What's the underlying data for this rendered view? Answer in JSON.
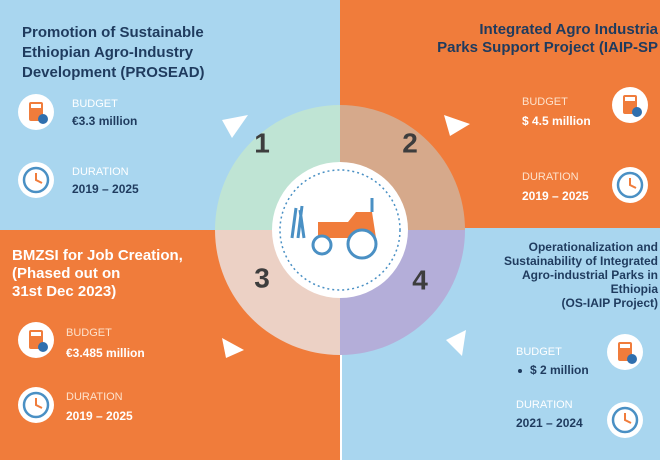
{
  "quadrants": [
    {
      "number": "1",
      "title": [
        "Promotion of Sustainable",
        "Ethiopian Agro-Industry",
        "Development (PROSEAD)"
      ],
      "budget_label": "BUDGET",
      "budget": "€3.3 million",
      "duration_label": "DURATION",
      "duration": "2019 – 2025"
    },
    {
      "number": "2",
      "title": [
        "Integrated Agro Industria",
        "Parks Support Project (IAIP-SP"
      ],
      "budget_label": "BUDGET",
      "budget": "$ 4.5 million",
      "duration_label": "DURATION",
      "duration": "2019 – 2025"
    },
    {
      "number": "3",
      "title": [
        "BMZSI for Job Creation,",
        "(Phased out on",
        " 31st Dec 2023)"
      ],
      "budget_label": "BUDGET",
      "budget": "€3.485 million",
      "duration_label": "DURATION",
      "duration": "2019 – 2025"
    },
    {
      "number": "4",
      "title": [
        "Operationalization and",
        "Sustainability of Integrated",
        "Agro-industrial Parks in",
        "Ethiopia",
        "(OS-IAIP Project)"
      ],
      "budget_label": "BUDGET",
      "budget": "$ 2 million",
      "duration_label": "DURATION",
      "duration": "2021 – 2024"
    }
  ]
}
